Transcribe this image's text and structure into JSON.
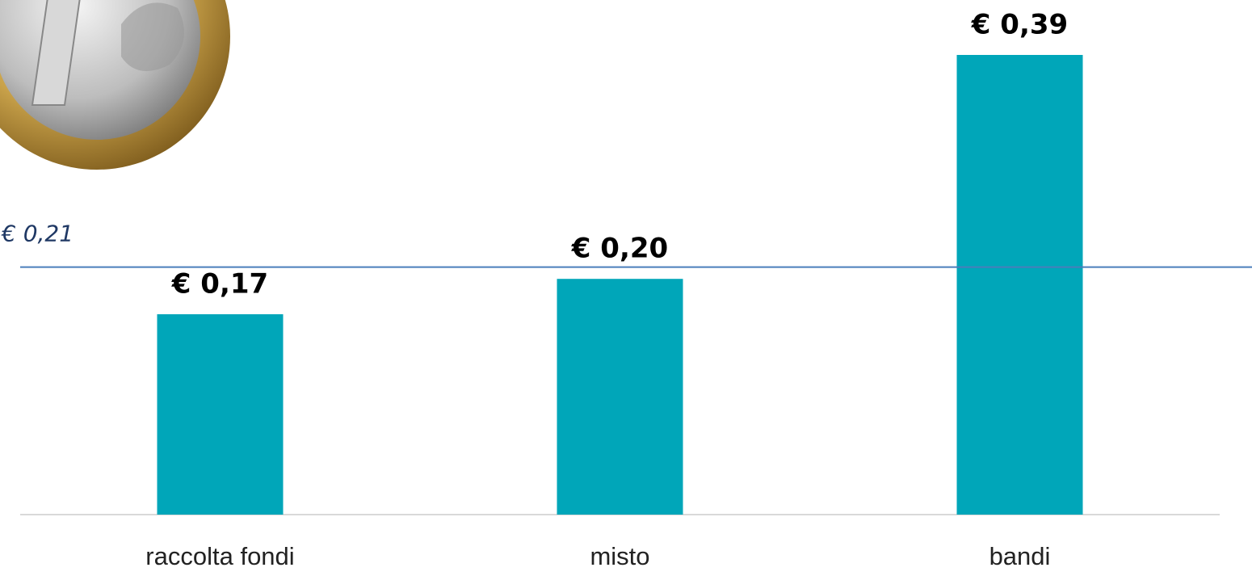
{
  "chart_data": {
    "type": "bar",
    "categories": [
      "raccolta fondi",
      "misto",
      "bandi"
    ],
    "values": [
      0.17,
      0.2,
      0.39
    ],
    "value_labels": [
      "€ 0,17",
      "€ 0,20",
      "€ 0,39"
    ],
    "color": "#00a6b9",
    "reference_line": {
      "value": 0.21,
      "label": "€ 0,21",
      "color": "#4a7ebb"
    }
  }
}
